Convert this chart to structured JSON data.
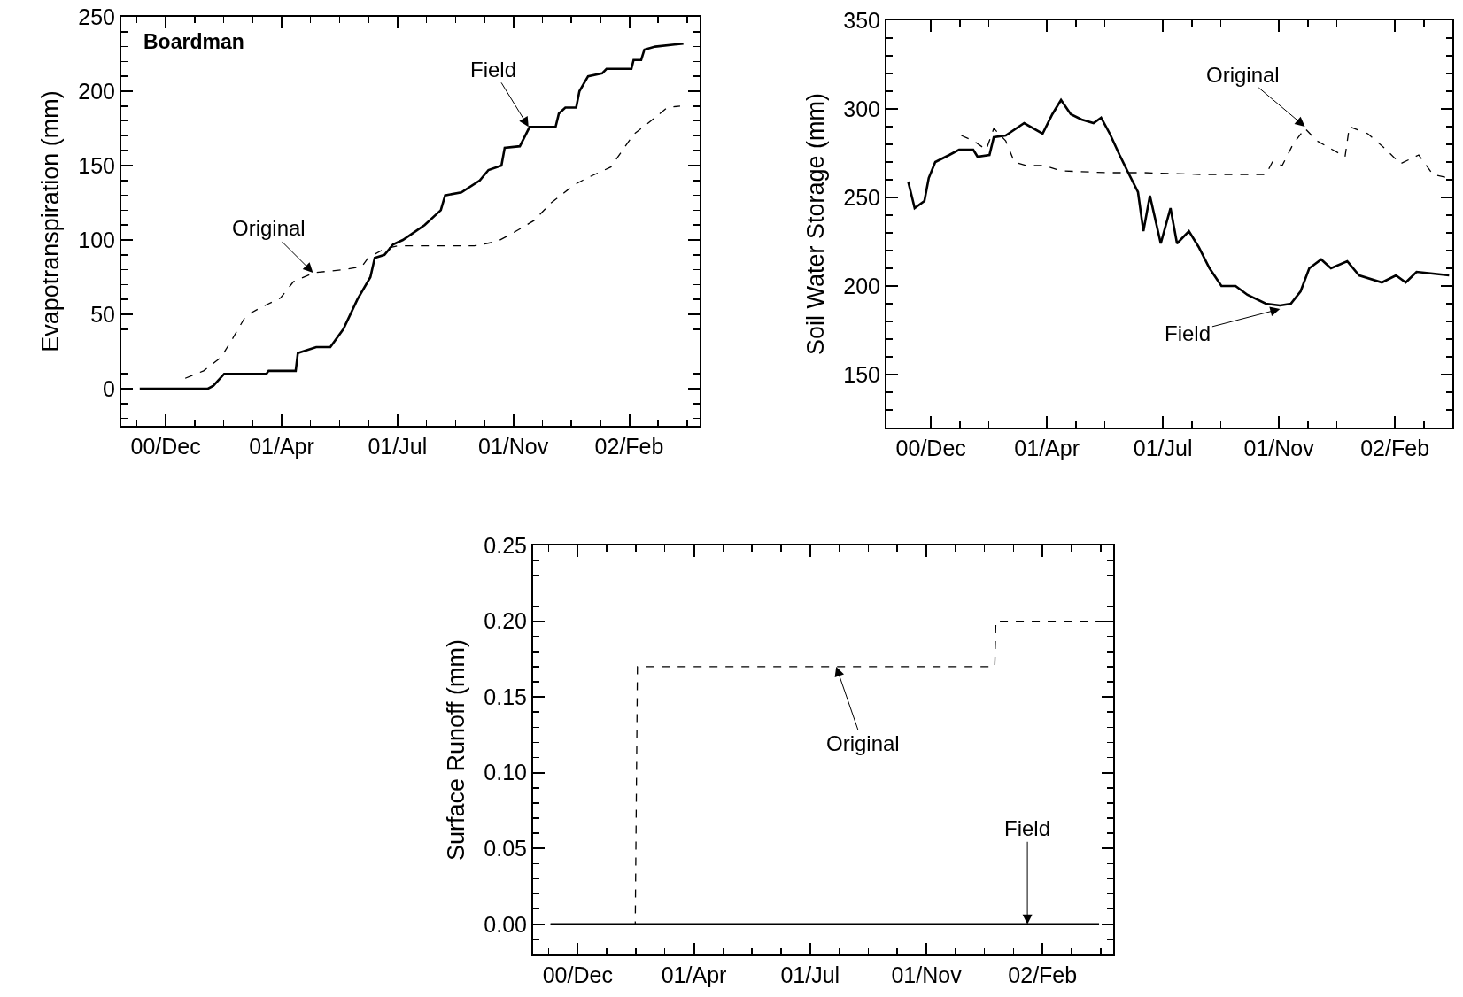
{
  "chart_data": [
    {
      "type": "line",
      "ylabel": "Evapotranspiration (mm)",
      "xlim": [
        "2000-11-04",
        "2002-04-22"
      ],
      "xticks": [
        {
          "value": "2000-12-15",
          "label": "00/Dec"
        },
        {
          "value": "2001-04-01",
          "label": "01/Apr"
        },
        {
          "value": "2001-07-17",
          "label": "01/Jul"
        },
        {
          "value": "2001-11-01",
          "label": "01/Nov"
        },
        {
          "value": "2002-02-16",
          "label": "02/Feb"
        }
      ],
      "ylim": [
        -25,
        250
      ],
      "yticks": [
        0,
        50,
        100,
        150,
        200,
        250
      ],
      "grid": false,
      "series": [
        {
          "color": "#000000",
          "line_style": "solid",
          "x": [
            "2000-11-21",
            "2001-01-23",
            "2001-01-28",
            "2001-02-07",
            "2001-03-18",
            "2001-03-20",
            "2001-04-14",
            "2001-04-16",
            "2001-05-03",
            "2001-05-16",
            "2001-05-28",
            "2001-06-10",
            "2001-06-22",
            "2001-06-26",
            "2001-07-05",
            "2001-07-13",
            "2001-07-22",
            "2001-08-11",
            "2001-08-26",
            "2001-08-30",
            "2001-09-14",
            "2001-10-01",
            "2001-10-09",
            "2001-10-21",
            "2001-10-24",
            "2001-11-07",
            "2001-11-16",
            "2001-12-10",
            "2001-12-13",
            "2001-12-19",
            "2001-12-29",
            "2002-01-01",
            "2002-01-09",
            "2002-01-22",
            "2002-01-26",
            "2002-02-18",
            "2002-02-20",
            "2002-02-27",
            "2002-03-02",
            "2002-03-12",
            "2002-04-07"
          ],
          "values": [
            0,
            0,
            2,
            10,
            10,
            12,
            12,
            24,
            28,
            28,
            40,
            60,
            75,
            88,
            90,
            97,
            100,
            110,
            120,
            130,
            132,
            140,
            147,
            150,
            162,
            163,
            176,
            176,
            185,
            189,
            189,
            200,
            210,
            212,
            215,
            215,
            221,
            221,
            228,
            230,
            232
          ]
        },
        {
          "color": "#000000",
          "line_style": "dashed",
          "x": [
            "2001-01-02",
            "2001-01-19",
            "2001-02-04",
            "2001-02-15",
            "2001-02-27",
            "2001-03-14",
            "2001-03-31",
            "2001-04-12",
            "2001-05-01",
            "2001-05-28",
            "2001-06-14",
            "2001-06-20",
            "2001-07-05",
            "2001-07-17",
            "2001-09-26",
            "2001-10-17",
            "2001-10-30",
            "2001-11-20",
            "2001-12-06",
            "2001-12-27",
            "2002-01-09",
            "2002-01-30",
            "2002-02-20",
            "2002-03-08",
            "2002-03-23",
            "2002-04-04"
          ],
          "values": [
            7,
            12,
            21,
            34,
            49,
            55,
            61,
            72,
            78,
            80,
            82,
            88,
            94,
            96,
            96,
            99,
            104,
            113,
            125,
            137,
            142,
            149,
            171,
            180,
            189,
            190
          ]
        }
      ],
      "annotations": [
        "Boardman",
        {
          "text": "Field",
          "x": "2001-11-15",
          "y": 176
        },
        {
          "text": "Original",
          "x": "2001-04-30",
          "y": 78
        }
      ]
    },
    {
      "type": "line",
      "ylabel": "Soil Water Storage (mm)",
      "xlim": [
        "2000-11-04",
        "2002-04-10"
      ],
      "xticks": [
        {
          "value": "2000-12-15",
          "label": "00/Dec"
        },
        {
          "value": "2001-04-01",
          "label": "01/Apr"
        },
        {
          "value": "2001-07-17",
          "label": "01/Jul"
        },
        {
          "value": "2001-11-01",
          "label": "01/Nov"
        },
        {
          "value": "2002-02-16",
          "label": "02/Feb"
        }
      ],
      "ylim": [
        120,
        350
      ],
      "yticks": [
        150,
        200,
        250,
        300,
        350
      ],
      "grid": false,
      "series": [
        {
          "color": "#000000",
          "line_style": "solid",
          "x": [
            "2000-11-24",
            "2000-11-30",
            "2000-12-09",
            "2000-12-13",
            "2000-12-19",
            "2001-01-01",
            "2001-01-10",
            "2001-01-23",
            "2001-01-27",
            "2001-02-07",
            "2001-02-11",
            "2001-02-22",
            "2001-03-11",
            "2001-03-28",
            "2001-04-06",
            "2001-04-14",
            "2001-04-23",
            "2001-05-03",
            "2001-05-14",
            "2001-05-21",
            "2001-05-29",
            "2001-06-07",
            "2001-06-15",
            "2001-06-24",
            "2001-06-29",
            "2001-07-05",
            "2001-07-15",
            "2001-07-24",
            "2001-07-30",
            "2001-08-10",
            "2001-08-19",
            "2001-08-29",
            "2001-09-09",
            "2001-09-22",
            "2001-10-03",
            "2001-10-20",
            "2001-11-02",
            "2001-11-12",
            "2001-11-21",
            "2001-11-29",
            "2001-12-10",
            "2001-12-19",
            "2002-01-03",
            "2002-01-14",
            "2002-02-04",
            "2002-02-17",
            "2002-02-26",
            "2002-03-08",
            "2002-03-23",
            "2002-04-07"
          ],
          "values": [
            259,
            244,
            248,
            261,
            270,
            274,
            277,
            277,
            273,
            274,
            284,
            285,
            292,
            286,
            297,
            305,
            297,
            294,
            292,
            295,
            286,
            274,
            264,
            253,
            231,
            251,
            224,
            244,
            224,
            231,
            222,
            210,
            200,
            200,
            195,
            190,
            189,
            190,
            197,
            210,
            215,
            210,
            214,
            206,
            202,
            206,
            202,
            208,
            207,
            206
          ]
        },
        {
          "color": "#000000",
          "line_style": "dashed",
          "x": [
            "2001-01-12",
            "2001-01-23",
            "2001-02-04",
            "2001-02-11",
            "2001-02-22",
            "2001-03-02",
            "2001-03-13",
            "2001-03-30",
            "2001-04-14",
            "2001-05-27",
            "2001-06-30",
            "2001-08-21",
            "2001-10-03",
            "2001-10-20",
            "2001-10-26",
            "2001-11-04",
            "2001-11-14",
            "2001-11-25",
            "2001-12-06",
            "2002-01-01",
            "2002-01-05",
            "2002-01-22",
            "2002-02-08",
            "2002-02-21",
            "2002-03-10",
            "2002-03-23",
            "2002-04-07"
          ],
          "values": [
            285,
            282,
            277,
            289,
            282,
            270,
            268,
            268,
            265,
            264,
            264,
            263,
            263,
            263,
            270,
            268,
            280,
            289,
            282,
            273,
            290,
            286,
            277,
            269,
            274,
            263,
            261
          ]
        }
      ],
      "annotations": [
        {
          "text": "Original",
          "x": "2001-11-25",
          "y": 290
        },
        {
          "text": "Field",
          "x": "2001-11-02",
          "y": 187
        }
      ]
    },
    {
      "type": "line",
      "ylabel": "Surface Runoff (mm)",
      "xlim": [
        "2000-11-04",
        "2002-04-22"
      ],
      "xticks": [
        {
          "value": "2000-12-15",
          "label": "00/Dec"
        },
        {
          "value": "2001-04-01",
          "label": "01/Apr"
        },
        {
          "value": "2001-07-17",
          "label": "01/Jul"
        },
        {
          "value": "2001-11-01",
          "label": "01/Nov"
        },
        {
          "value": "2002-02-16",
          "label": "02/Feb"
        }
      ],
      "ylim": [
        -0.02,
        0.25
      ],
      "yticks": [
        {
          "value": 0,
          "label": "0.00"
        },
        {
          "value": 0.05,
          "label": "0.05"
        },
        {
          "value": 0.1,
          "label": "0.10"
        },
        {
          "value": 0.15,
          "label": "0.15"
        },
        {
          "value": 0.2,
          "label": "0.20"
        },
        0.25
      ],
      "grid": false,
      "series": [
        {
          "color": "#000000",
          "line_style": "solid",
          "x": [
            "2000-11-20",
            "2002-04-09"
          ],
          "values": [
            0,
            0
          ]
        },
        {
          "color": "#000000",
          "line_style": "dashed",
          "x": [
            "2000-11-20",
            "2001-02-06",
            "2001-02-08",
            "2002-01-03",
            "2002-01-04",
            "2002-04-20"
          ],
          "values": [
            0,
            0,
            0.17,
            0.17,
            0.2,
            0.2
          ]
        }
      ],
      "annotations": [
        {
          "text": "Original",
          "x": "2001-08-10",
          "y": 0.17
        },
        {
          "text": "Field",
          "x": "2002-02-02",
          "y": 0
        }
      ]
    }
  ]
}
